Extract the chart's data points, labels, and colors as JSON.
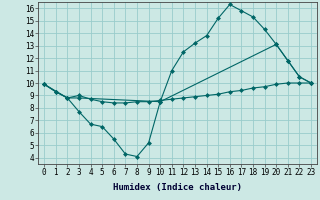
{
  "xlabel": "Humidex (Indice chaleur)",
  "background_color": "#cce8e4",
  "grid_color": "#99cccc",
  "line_color": "#006666",
  "xlim": [
    -0.5,
    23.5
  ],
  "ylim": [
    3.5,
    16.5
  ],
  "xticks": [
    0,
    1,
    2,
    3,
    4,
    5,
    6,
    7,
    8,
    9,
    10,
    11,
    12,
    13,
    14,
    15,
    16,
    17,
    18,
    19,
    20,
    21,
    22,
    23
  ],
  "yticks": [
    4,
    5,
    6,
    7,
    8,
    9,
    10,
    11,
    12,
    13,
    14,
    15,
    16
  ],
  "line1_x": [
    0,
    1,
    2,
    3,
    10,
    11,
    12,
    13,
    14,
    15,
    16,
    17,
    18,
    19,
    20,
    21,
    22,
    23
  ],
  "line1_y": [
    9.9,
    9.3,
    8.8,
    8.8,
    8.5,
    11.0,
    12.5,
    13.2,
    13.8,
    15.2,
    16.3,
    15.8,
    15.3,
    14.3,
    13.1,
    11.8,
    10.5,
    10.0
  ],
  "line2_x": [
    0,
    1,
    2,
    3,
    4,
    5,
    6,
    7,
    8,
    9,
    10,
    11,
    12,
    13,
    14,
    15,
    16,
    17,
    18,
    19,
    20,
    21,
    22,
    23
  ],
  "line2_y": [
    9.9,
    9.3,
    8.8,
    9.0,
    8.7,
    8.5,
    8.4,
    8.4,
    8.5,
    8.5,
    8.6,
    8.7,
    8.8,
    8.9,
    9.0,
    9.1,
    9.3,
    9.4,
    9.6,
    9.7,
    9.9,
    10.0,
    10.0,
    10.0
  ],
  "line3_x": [
    0,
    2,
    3,
    4,
    5,
    6,
    7,
    8,
    9,
    10,
    20,
    21,
    22,
    23
  ],
  "line3_y": [
    9.9,
    8.8,
    7.7,
    6.7,
    6.5,
    5.5,
    4.3,
    4.1,
    5.2,
    8.5,
    13.1,
    11.8,
    10.5,
    10.0
  ],
  "tick_fontsize": 5.5,
  "xlabel_fontsize": 6.5
}
